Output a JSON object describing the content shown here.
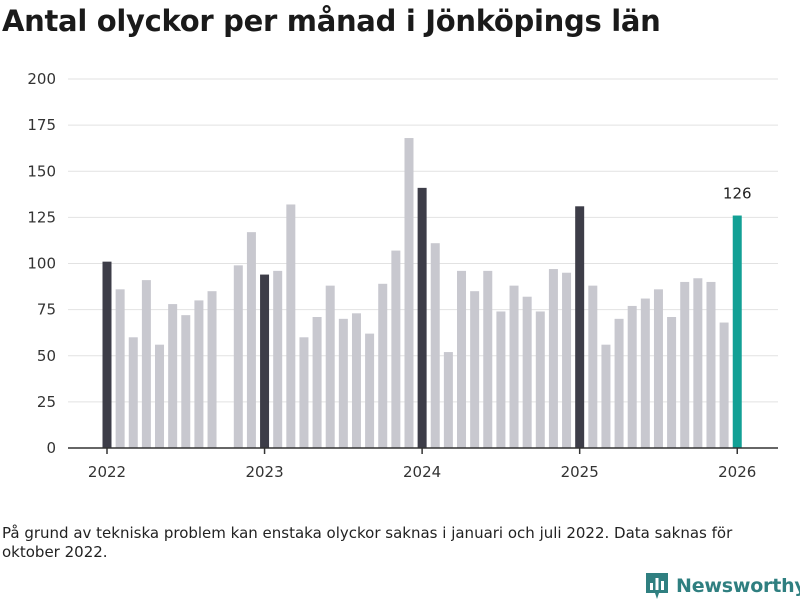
{
  "chart_data": {
    "type": "bar",
    "title": "Antal olyckor per månad i Jönköpings län",
    "xlabel": "",
    "ylabel": "",
    "ylim": [
      0,
      200
    ],
    "yticks": [
      0,
      25,
      50,
      75,
      100,
      125,
      150,
      175,
      200
    ],
    "xticks": [
      "2022",
      "2023",
      "2024",
      "2025",
      "2026"
    ],
    "grid": true,
    "colors": {
      "regular": "#c8c8cf",
      "january": "#3d3d48",
      "latest": "#12a095"
    },
    "series": [
      {
        "year": 2022,
        "values": [
          101,
          86,
          60,
          91,
          56,
          78,
          72,
          80,
          85,
          null,
          99,
          117
        ]
      },
      {
        "year": 2023,
        "values": [
          94,
          96,
          132,
          60,
          71,
          88,
          70,
          73,
          62,
          89,
          107,
          168
        ]
      },
      {
        "year": 2024,
        "values": [
          141,
          111,
          52,
          96,
          85,
          96,
          74,
          88,
          82,
          74,
          97,
          95
        ]
      },
      {
        "year": 2025,
        "values": [
          131,
          88,
          56,
          70,
          77,
          81,
          86,
          71,
          90,
          92,
          90,
          68
        ]
      },
      {
        "year": 2026,
        "values": [
          126
        ]
      }
    ],
    "annotation": "126"
  },
  "note": "På grund av tekniska problem kan enstaka olyckor saknas i januari och juli 2022. Data saknas för oktober 2022.",
  "brand": {
    "name": "Newsworthy",
    "icon": "bar-chart-logo-icon",
    "color": "#2f7f80"
  }
}
